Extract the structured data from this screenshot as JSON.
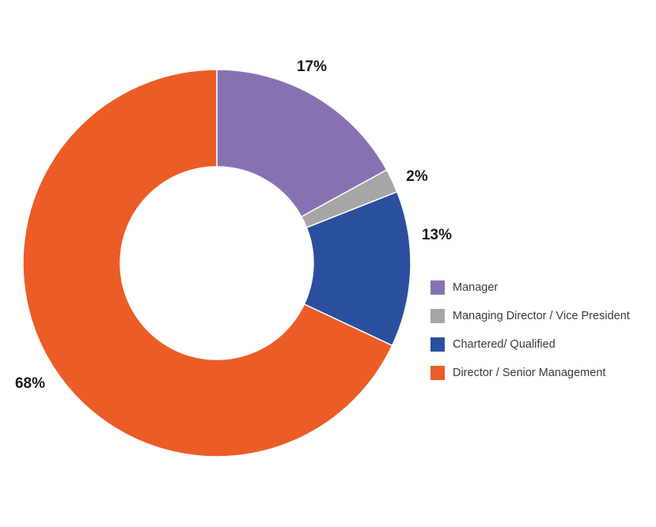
{
  "chart_data": {
    "type": "pie",
    "variant": "donut",
    "title": "",
    "categories": [
      "Manager",
      "Managing Director / Vice President",
      "Chartered/ Qualified",
      "Director / Senior Management"
    ],
    "values": [
      17,
      2,
      13,
      68
    ],
    "value_labels": [
      "17%",
      "2%",
      "13%",
      "68%"
    ],
    "colors": [
      "#8672b3",
      "#a6a6a6",
      "#2a4f9e",
      "#ec5c26"
    ],
    "start_angle_deg": 0,
    "direction": "clockwise",
    "legend_position": "right"
  }
}
